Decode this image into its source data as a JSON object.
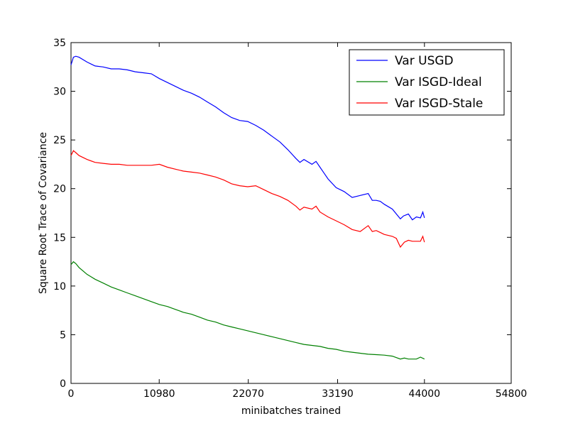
{
  "chart_data": {
    "type": "line",
    "xlabel": "minibatches trained",
    "ylabel": "Square Root Trace of Covariance",
    "xlim": [
      0,
      54800
    ],
    "ylim": [
      0,
      35
    ],
    "xticks": [
      0,
      10980,
      22070,
      33190,
      44000,
      54800
    ],
    "yticks": [
      0,
      5,
      10,
      15,
      20,
      25,
      30,
      35
    ],
    "xtick_labels": [
      "0",
      "10980",
      "22070",
      "33190",
      "44000",
      "54800"
    ],
    "ytick_labels": [
      "0",
      "5",
      "10",
      "15",
      "20",
      "25",
      "30",
      "35"
    ],
    "grid": false,
    "legend_position": "top-right",
    "series": [
      {
        "name": "Var USGD",
        "color": "#0000ff",
        "x": [
          0,
          300,
          600,
          1000,
          2000,
          3000,
          4000,
          5000,
          6000,
          7000,
          8000,
          9000,
          10000,
          11000,
          12000,
          13000,
          14000,
          15000,
          16000,
          17000,
          18000,
          19000,
          20000,
          21000,
          22000,
          23000,
          24000,
          25000,
          26000,
          27000,
          28000,
          28500,
          29000,
          30000,
          30500,
          31000,
          31500,
          32000,
          33000,
          34000,
          35000,
          36000,
          37000,
          37500,
          38000,
          38500,
          39000,
          40000,
          41000,
          41400,
          42000,
          42500,
          43000,
          43500,
          43800,
          44000
        ],
        "y": [
          32.7,
          33.5,
          33.6,
          33.5,
          33.0,
          32.6,
          32.5,
          32.3,
          32.3,
          32.2,
          32.0,
          31.9,
          31.8,
          31.3,
          30.9,
          30.5,
          30.1,
          29.8,
          29.4,
          28.9,
          28.4,
          27.8,
          27.3,
          27.0,
          26.9,
          26.5,
          26.0,
          25.4,
          24.8,
          24.0,
          23.1,
          22.7,
          23.0,
          22.5,
          22.8,
          22.2,
          21.6,
          21.0,
          20.1,
          19.7,
          19.1,
          19.3,
          19.5,
          18.8,
          18.8,
          18.7,
          18.4,
          17.9,
          16.9,
          17.2,
          17.4,
          16.8,
          17.1,
          17.0,
          17.6,
          17.0
        ]
      },
      {
        "name": "Var ISGD-Ideal",
        "color": "#008000",
        "x": [
          0,
          300,
          600,
          1000,
          2000,
          3000,
          4000,
          5000,
          6000,
          7000,
          8000,
          9000,
          10000,
          11000,
          12000,
          13000,
          14000,
          15000,
          16000,
          17000,
          18000,
          19000,
          20000,
          21000,
          22000,
          23000,
          24000,
          25000,
          26000,
          27000,
          28000,
          29000,
          30000,
          31000,
          32000,
          33000,
          34000,
          35000,
          36000,
          37000,
          38000,
          39000,
          40000,
          41000,
          41500,
          42000,
          42500,
          43000,
          43500,
          44000
        ],
        "y": [
          12.2,
          12.5,
          12.3,
          11.9,
          11.2,
          10.7,
          10.3,
          9.9,
          9.6,
          9.3,
          9.0,
          8.7,
          8.4,
          8.1,
          7.9,
          7.6,
          7.3,
          7.1,
          6.8,
          6.5,
          6.3,
          6.0,
          5.8,
          5.6,
          5.4,
          5.2,
          5.0,
          4.8,
          4.6,
          4.4,
          4.2,
          4.0,
          3.9,
          3.8,
          3.6,
          3.5,
          3.3,
          3.2,
          3.1,
          3.0,
          2.95,
          2.9,
          2.8,
          2.5,
          2.6,
          2.5,
          2.5,
          2.5,
          2.7,
          2.5
        ]
      },
      {
        "name": "Var ISGD-Stale",
        "color": "#ff0000",
        "x": [
          0,
          300,
          600,
          1000,
          2000,
          3000,
          4000,
          5000,
          6000,
          7000,
          8000,
          9000,
          10000,
          11000,
          12000,
          13000,
          14000,
          15000,
          16000,
          17000,
          18000,
          19000,
          20000,
          21000,
          22000,
          23000,
          24000,
          25000,
          26000,
          27000,
          28000,
          28500,
          29000,
          30000,
          30500,
          31000,
          32000,
          33000,
          34000,
          35000,
          36000,
          37000,
          37500,
          38000,
          38500,
          39000,
          40000,
          40500,
          41000,
          41500,
          42000,
          42500,
          43000,
          43500,
          43800,
          44000
        ],
        "y": [
          23.4,
          23.9,
          23.7,
          23.4,
          23.0,
          22.7,
          22.6,
          22.5,
          22.5,
          22.4,
          22.4,
          22.4,
          22.4,
          22.5,
          22.2,
          22.0,
          21.8,
          21.7,
          21.6,
          21.4,
          21.2,
          20.9,
          20.5,
          20.3,
          20.2,
          20.3,
          19.9,
          19.5,
          19.2,
          18.8,
          18.2,
          17.8,
          18.1,
          17.9,
          18.2,
          17.6,
          17.1,
          16.7,
          16.3,
          15.8,
          15.6,
          16.2,
          15.6,
          15.7,
          15.5,
          15.3,
          15.1,
          14.9,
          14.0,
          14.5,
          14.7,
          14.6,
          14.6,
          14.6,
          15.1,
          14.5
        ]
      }
    ]
  }
}
